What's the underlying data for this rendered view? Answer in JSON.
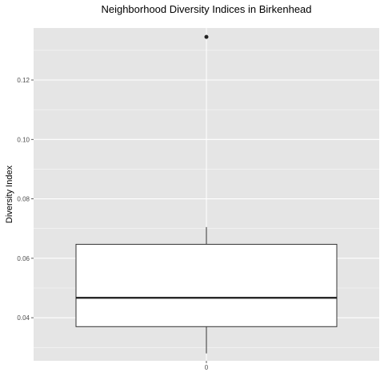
{
  "chart_data": {
    "type": "boxplot",
    "title": "Neighborhood Diversity Indices in Birkenhead",
    "xlabel": "",
    "ylabel": "Diversity Index",
    "categories": [
      "0"
    ],
    "ylim": [
      0.0255,
      0.1375
    ],
    "y_ticks": [
      0.04,
      0.06,
      0.08,
      0.1,
      0.12
    ],
    "y_tick_labels": [
      "0.04",
      "0.06",
      "0.08",
      "0.10",
      "0.12"
    ],
    "box": {
      "lower_whisker": 0.028,
      "q1": 0.037,
      "median": 0.0467,
      "q3": 0.0647,
      "upper_whisker": 0.0705
    },
    "outliers": [
      0.1345
    ],
    "grid": true,
    "legend": "none",
    "colors": {
      "panel": "#e5e5e5",
      "grid": "#ffffff",
      "box_fill": "#ffffff",
      "box_stroke": "#333333"
    }
  }
}
